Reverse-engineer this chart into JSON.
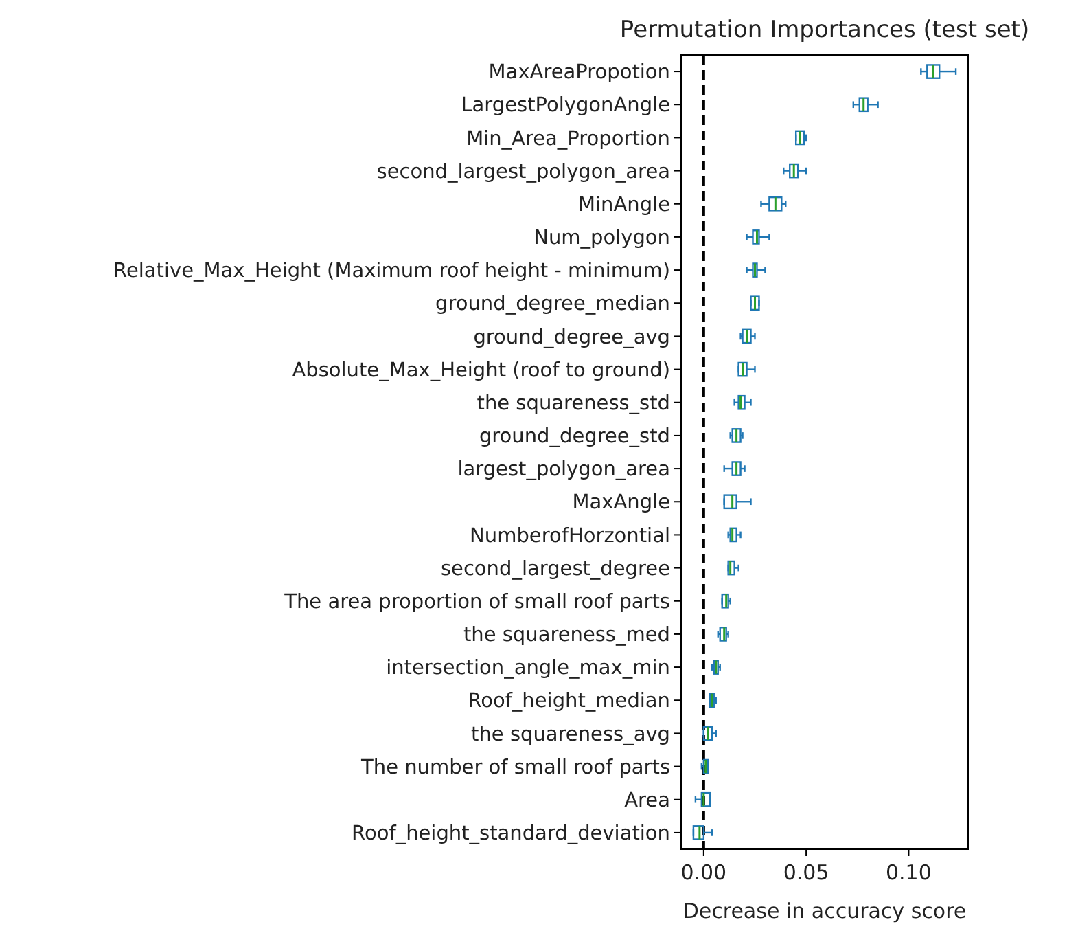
{
  "chart_data": {
    "type": "box",
    "title": "Permutation Importances (test set)",
    "xlabel": "Decrease in accuracy score",
    "orientation": "horizontal",
    "categories": [
      "MaxAreaPropotion",
      "LargestPolygonAngle",
      "Min_Area_Proportion",
      "second_largest_polygon_area",
      "MinAngle",
      "Num_polygon",
      "Relative_Max_Height (Maximum roof height - minimum)",
      "ground_degree_median",
      "ground_degree_avg",
      "Absolute_Max_Height (roof to ground)",
      "the squareness_std",
      "ground_degree_std",
      "largest_polygon_area",
      "MaxAngle",
      "NumberofHorzontial",
      "second_largest_degree",
      "The area proportion of small roof parts",
      "the squareness_med",
      "intersection_angle_max_min",
      "Roof_height_median",
      "the squareness_avg",
      "The number of small roof parts",
      "Area",
      "Roof_height_standard_deviation"
    ],
    "series": [
      {
        "color": "#1f77b4",
        "boxes": [
          {
            "low": 0.106,
            "q1": 0.109,
            "median": 0.112,
            "q3": 0.115,
            "high": 0.123
          },
          {
            "low": 0.073,
            "q1": 0.076,
            "median": 0.078,
            "q3": 0.08,
            "high": 0.085
          },
          {
            "low": 0.045,
            "q1": 0.045,
            "median": 0.047,
            "q3": 0.049,
            "high": 0.05
          },
          {
            "low": 0.039,
            "q1": 0.042,
            "median": 0.044,
            "q3": 0.046,
            "high": 0.05
          },
          {
            "low": 0.028,
            "q1": 0.032,
            "median": 0.035,
            "q3": 0.038,
            "high": 0.04
          },
          {
            "low": 0.021,
            "q1": 0.024,
            "median": 0.026,
            "q3": 0.027,
            "high": 0.032
          },
          {
            "low": 0.021,
            "q1": 0.024,
            "median": 0.025,
            "q3": 0.026,
            "high": 0.03
          },
          {
            "low": 0.023,
            "q1": 0.023,
            "median": 0.025,
            "q3": 0.027,
            "high": 0.027
          },
          {
            "low": 0.018,
            "q1": 0.019,
            "median": 0.021,
            "q3": 0.023,
            "high": 0.025
          },
          {
            "low": 0.017,
            "q1": 0.017,
            "median": 0.019,
            "q3": 0.021,
            "high": 0.025
          },
          {
            "low": 0.015,
            "q1": 0.017,
            "median": 0.018,
            "q3": 0.02,
            "high": 0.023
          },
          {
            "low": 0.013,
            "q1": 0.014,
            "median": 0.016,
            "q3": 0.018,
            "high": 0.019
          },
          {
            "low": 0.01,
            "q1": 0.014,
            "median": 0.016,
            "q3": 0.018,
            "high": 0.02
          },
          {
            "low": 0.01,
            "q1": 0.01,
            "median": 0.014,
            "q3": 0.016,
            "high": 0.023
          },
          {
            "low": 0.012,
            "q1": 0.013,
            "median": 0.014,
            "q3": 0.016,
            "high": 0.018
          },
          {
            "low": 0.012,
            "q1": 0.012,
            "median": 0.013,
            "q3": 0.015,
            "high": 0.017
          },
          {
            "low": 0.009,
            "q1": 0.009,
            "median": 0.011,
            "q3": 0.012,
            "high": 0.013
          },
          {
            "low": 0.007,
            "q1": 0.008,
            "median": 0.01,
            "q3": 0.011,
            "high": 0.012
          },
          {
            "low": 0.004,
            "q1": 0.005,
            "median": 0.006,
            "q3": 0.007,
            "high": 0.008
          },
          {
            "low": 0.003,
            "q1": 0.003,
            "median": 0.004,
            "q3": 0.005,
            "high": 0.006
          },
          {
            "low": 0.0,
            "q1": 0.0,
            "median": 0.002,
            "q3": 0.004,
            "high": 0.006
          },
          {
            "low": -0.001,
            "q1": 0.0,
            "median": 0.001,
            "q3": 0.002,
            "high": 0.002
          },
          {
            "low": -0.004,
            "q1": -0.001,
            "median": 0.0,
            "q3": 0.003,
            "high": 0.003
          },
          {
            "low": -0.005,
            "q1": -0.005,
            "median": -0.002,
            "q3": 0.0,
            "high": 0.004
          }
        ]
      }
    ],
    "xlim": [
      -0.011,
      0.129
    ],
    "xticks": [
      {
        "value": 0,
        "label": "0.00"
      },
      {
        "value": 0.05,
        "label": "0.05"
      },
      {
        "value": 0.1,
        "label": "0.10"
      }
    ],
    "ref_lines": [
      {
        "axis": "x",
        "value": 0,
        "color": "#000000",
        "line_style": "dashed"
      }
    ],
    "grid": false
  }
}
